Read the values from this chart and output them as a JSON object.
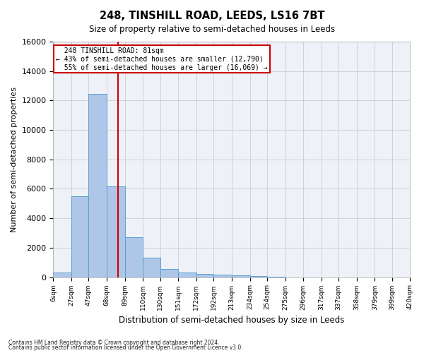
{
  "title": "248, TINSHILL ROAD, LEEDS, LS16 7BT",
  "subtitle": "Size of property relative to semi-detached houses in Leeds",
  "xlabel": "Distribution of semi-detached houses by size in Leeds",
  "ylabel": "Number of semi-detached properties",
  "bar_edges": [
    6,
    27,
    47,
    68,
    89,
    110,
    130,
    151,
    172,
    192,
    213,
    234,
    254,
    275,
    296,
    317,
    337,
    358,
    379,
    399,
    420
  ],
  "bar_heights": [
    300,
    5500,
    12450,
    6150,
    2700,
    1300,
    550,
    300,
    200,
    150,
    100,
    70,
    50,
    0,
    0,
    0,
    0,
    0,
    0,
    0
  ],
  "bar_color": "#aec6e8",
  "bar_edge_color": "#5a9fd4",
  "property_line_x": 81,
  "property_label": "248 TINSHILL ROAD: 81sqm",
  "smaller_pct": "43%",
  "smaller_count": "12,790",
  "larger_pct": "55%",
  "larger_count": "16,069",
  "annotation_box_color": "#ffffff",
  "annotation_box_edge_color": "#cc0000",
  "red_line_color": "#cc0000",
  "ylim": [
    0,
    16000
  ],
  "yticks": [
    0,
    2000,
    4000,
    6000,
    8000,
    10000,
    12000,
    14000,
    16000
  ],
  "grid_color": "#cccccc",
  "bg_color": "#eef2f8",
  "footnote1": "Contains HM Land Registry data © Crown copyright and database right 2024.",
  "footnote2": "Contains public sector information licensed under the Open Government Licence v3.0."
}
